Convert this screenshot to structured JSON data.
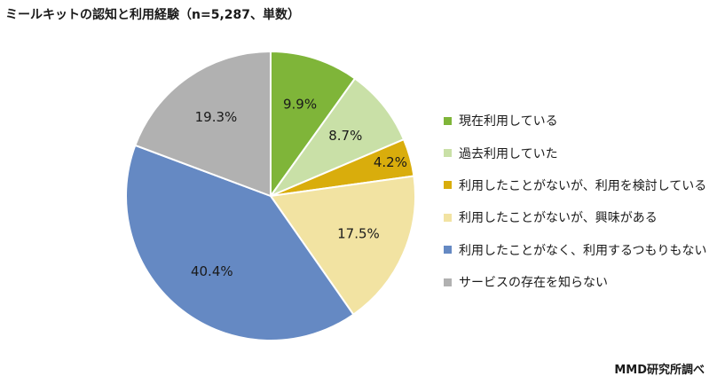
{
  "title": "ミールキットの認知と利用経験（n=5,287、単数）",
  "source": "MMD研究所調べ",
  "chart_data": {
    "type": "pie",
    "categories": [
      "現在利用している",
      "過去利用していた",
      "利用したことがないが、利用を検討している",
      "利用したことがないが、興味がある",
      "利用したことがなく、利用するつもりもない",
      "サービスの存在を知らない"
    ],
    "values": [
      9.9,
      8.7,
      4.2,
      17.5,
      40.4,
      19.3
    ],
    "value_labels": [
      "9.9%",
      "8.7%",
      "4.2%",
      "17.5%",
      "40.4%",
      "19.3%"
    ],
    "colors": [
      "#7fb539",
      "#c9e0a7",
      "#d9ad0c",
      "#f2e3a2",
      "#6589c3",
      "#b1b1b1"
    ],
    "legend_position": "right"
  }
}
